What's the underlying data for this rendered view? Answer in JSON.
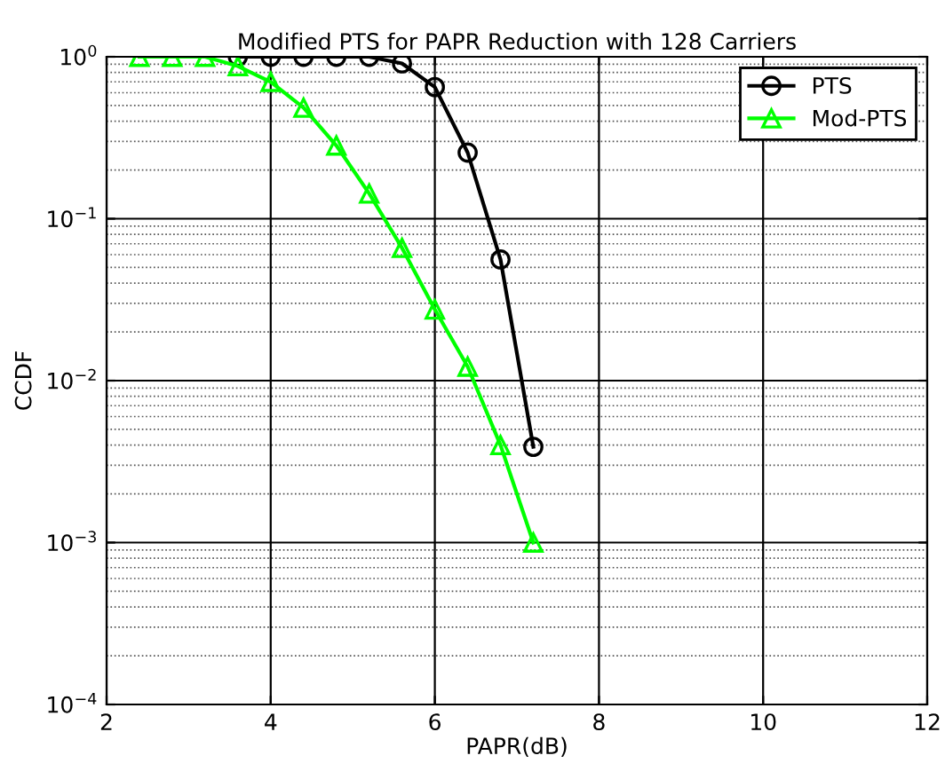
{
  "chart_data": {
    "type": "line",
    "title": "Modified PTS for PAPR Reduction with 128 Carriers",
    "xlabel": "PAPR(dB)",
    "ylabel": "CCDF",
    "x": [
      2.4,
      2.8,
      3.2,
      3.6,
      4.0,
      4.4,
      4.8,
      5.2,
      5.6,
      6.0,
      6.4,
      6.8,
      7.2
    ],
    "series": [
      {
        "name": "PTS",
        "color": "#000000",
        "marker": "circle",
        "values": [
          null,
          null,
          null,
          1,
          1,
          1,
          1,
          1,
          0.91,
          0.65,
          0.256,
          0.056,
          0.0039
        ]
      },
      {
        "name": "Mod-PTS",
        "color": "#00ff00",
        "marker": "triangle",
        "values": [
          1,
          1,
          1,
          0.875,
          0.7,
          0.485,
          0.283,
          0.143,
          0.066,
          0.0275,
          0.0122,
          0.004,
          0.001
        ]
      }
    ],
    "log": "y",
    "xlim": [
      2,
      12
    ],
    "ylim": [
      0.0001,
      1
    ],
    "xticks": [
      2,
      4,
      6,
      8,
      10,
      12
    ],
    "yticks": [
      {
        "value": 0.0001,
        "label": "10$^{−4}$"
      },
      {
        "value": 0.001,
        "label": "10$^{−3}$"
      },
      {
        "value": 0.01,
        "label": "10$^{−2}$"
      },
      {
        "value": 0.1,
        "label": "10$^{−1}$"
      },
      {
        "value": 1,
        "label": "10$^{0}$"
      }
    ],
    "grid": true,
    "legend": "top right",
    "line_style": "solid"
  }
}
